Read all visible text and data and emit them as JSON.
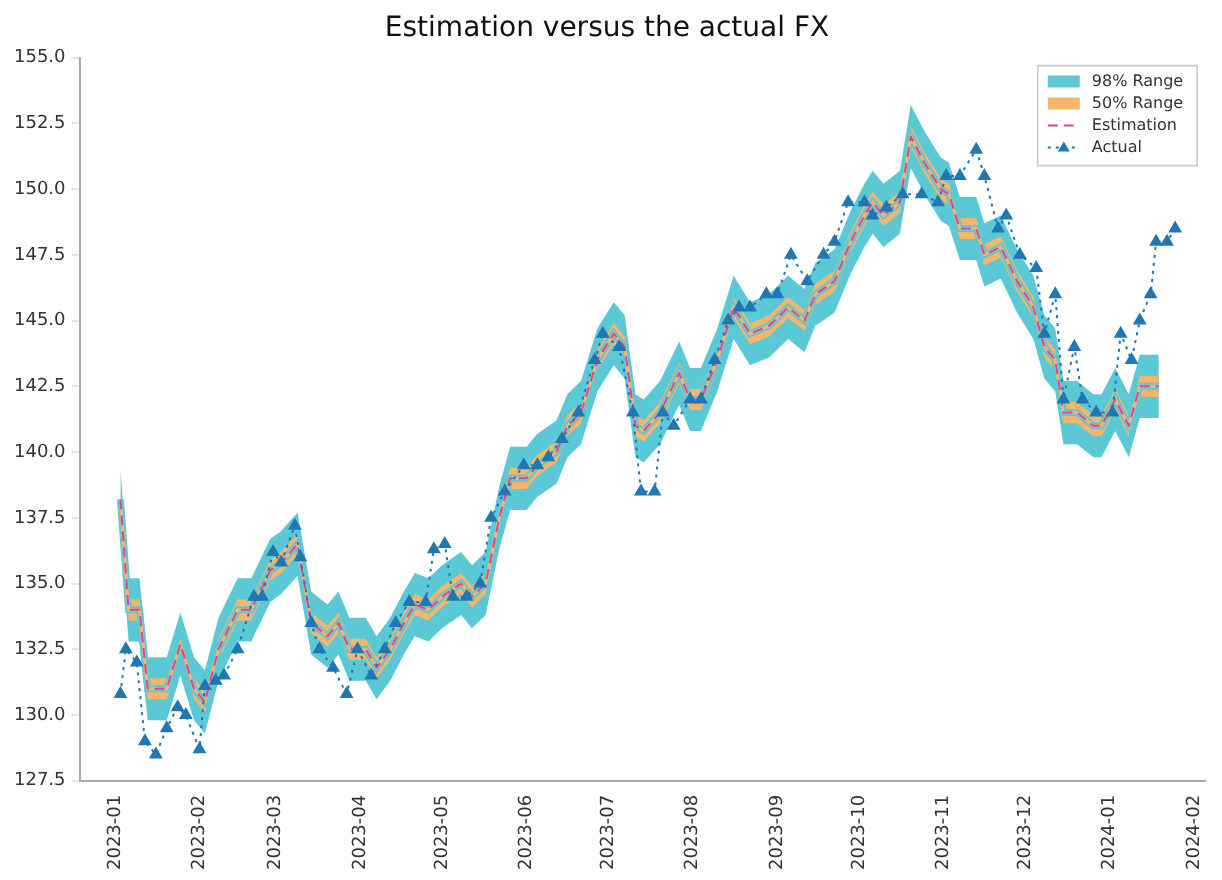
{
  "chart_data": {
    "type": "line",
    "title": "Estimation versus the actual FX",
    "x": [
      "2023-01-03",
      "2023-01-06",
      "2023-01-10",
      "2023-01-13",
      "2023-01-20",
      "2023-01-25",
      "2023-01-30",
      "2023-02-03",
      "2023-02-08",
      "2023-02-15",
      "2023-02-20",
      "2023-02-27",
      "2023-03-03",
      "2023-03-09",
      "2023-03-14",
      "2023-03-20",
      "2023-03-24",
      "2023-03-28",
      "2023-04-03",
      "2023-04-07",
      "2023-04-12",
      "2023-04-17",
      "2023-04-21",
      "2023-04-26",
      "2023-05-01",
      "2023-05-08",
      "2023-05-12",
      "2023-05-17",
      "2023-05-22",
      "2023-05-26",
      "2023-06-01",
      "2023-06-05",
      "2023-06-12",
      "2023-06-16",
      "2023-06-21",
      "2023-06-27",
      "2023-07-03",
      "2023-07-07",
      "2023-07-11",
      "2023-07-14",
      "2023-07-20",
      "2023-07-27",
      "2023-07-31",
      "2023-08-04",
      "2023-08-10",
      "2023-08-16",
      "2023-08-22",
      "2023-08-29",
      "2023-09-05",
      "2023-09-11",
      "2023-09-15",
      "2023-09-22",
      "2023-09-28",
      "2023-10-03",
      "2023-10-06",
      "2023-10-10",
      "2023-10-16",
      "2023-10-20",
      "2023-10-25",
      "2023-10-31",
      "2023-11-03",
      "2023-11-07",
      "2023-11-13",
      "2023-11-16",
      "2023-11-22",
      "2023-11-28",
      "2023-12-04",
      "2023-12-08",
      "2023-12-12",
      "2023-12-15",
      "2023-12-20",
      "2023-12-26",
      "2023-12-29",
      "2024-01-03",
      "2024-01-08",
      "2024-01-12",
      "2024-01-16",
      "2024-01-19"
    ],
    "series": [
      {
        "name": "98% Range",
        "type": "line",
        "color": "#5bc8d6",
        "marker": "none",
        "values": [
          138.2,
          134,
          134,
          131,
          131,
          132.7,
          131,
          130.5,
          132.5,
          134,
          134,
          135.5,
          135.8,
          136.5,
          133.5,
          133,
          133.5,
          132.5,
          132.5,
          131.8,
          132.5,
          133.5,
          134.2,
          134,
          134.5,
          135,
          134.5,
          135,
          137.5,
          139,
          139,
          139.5,
          140,
          141,
          141.5,
          143.5,
          144.5,
          144,
          141,
          140.8,
          141.5,
          143,
          142,
          142,
          143.5,
          145.5,
          144.5,
          144.8,
          145.5,
          145,
          146,
          146.5,
          148,
          149,
          149.5,
          149,
          149.5,
          152,
          151,
          150,
          149.8,
          148.5,
          148.5,
          147.5,
          147.8,
          146.5,
          145.5,
          144,
          143.5,
          141.5,
          141.5,
          141,
          141,
          142,
          141,
          142.5,
          142.5,
          142.5
        ],
        "lower": [
          137.0,
          132.8,
          132.8,
          129.8,
          129.8,
          131.5,
          129.8,
          129.3,
          131.3,
          132.8,
          132.8,
          134.3,
          134.6,
          135.3,
          132.3,
          131.8,
          132.3,
          131.3,
          131.3,
          130.6,
          131.3,
          132.3,
          133.0,
          132.8,
          133.3,
          133.8,
          133.3,
          133.8,
          136.3,
          137.8,
          137.8,
          138.3,
          138.8,
          139.8,
          140.3,
          142.3,
          143.3,
          142.8,
          139.8,
          139.6,
          140.3,
          141.8,
          140.8,
          140.8,
          142.3,
          144.3,
          143.3,
          143.6,
          144.3,
          143.8,
          144.8,
          145.3,
          146.8,
          147.8,
          148.3,
          147.8,
          148.3,
          150.8,
          149.8,
          148.8,
          148.6,
          147.3,
          147.3,
          146.3,
          146.6,
          145.3,
          144.3,
          142.8,
          142.3,
          140.3,
          140.3,
          139.8,
          139.8,
          140.8,
          139.8,
          141.3,
          141.3,
          141.3
        ],
        "upper": [
          139.4,
          135.2,
          135.2,
          132.2,
          132.2,
          133.9,
          132.2,
          131.7,
          133.7,
          135.2,
          135.2,
          136.7,
          137.0,
          137.7,
          134.7,
          134.2,
          134.7,
          133.7,
          133.7,
          133.0,
          133.7,
          134.7,
          135.4,
          135.2,
          135.7,
          136.2,
          135.7,
          136.2,
          138.7,
          140.2,
          140.2,
          140.7,
          141.2,
          142.2,
          142.7,
          144.7,
          145.7,
          145.2,
          142.2,
          142.0,
          142.7,
          144.2,
          143.2,
          143.2,
          144.7,
          146.7,
          145.7,
          146.0,
          146.7,
          146.2,
          147.2,
          147.7,
          149.2,
          150.2,
          150.7,
          150.2,
          150.7,
          153.2,
          152.2,
          151.2,
          151.0,
          149.7,
          149.7,
          148.7,
          149.0,
          147.7,
          146.7,
          145.2,
          144.7,
          142.7,
          142.7,
          142.2,
          142.2,
          143.2,
          142.2,
          143.7,
          143.7,
          143.7
        ]
      },
      {
        "name": "50% Range",
        "type": "line",
        "color": "#f5b56b",
        "marker": "none",
        "values": [
          138.2,
          134,
          134,
          131,
          131,
          132.7,
          131,
          130.5,
          132.5,
          134,
          134,
          135.5,
          135.8,
          136.5,
          133.5,
          133,
          133.5,
          132.5,
          132.5,
          131.8,
          132.5,
          133.5,
          134.2,
          134,
          134.5,
          135,
          134.5,
          135,
          137.5,
          139,
          139,
          139.5,
          140,
          141,
          141.5,
          143.5,
          144.5,
          144,
          141,
          140.8,
          141.5,
          143,
          142,
          142,
          143.5,
          145.5,
          144.5,
          144.8,
          145.5,
          145,
          146,
          146.5,
          148,
          149,
          149.5,
          149,
          149.5,
          152,
          151,
          150,
          149.8,
          148.5,
          148.5,
          147.5,
          147.8,
          146.5,
          145.5,
          144,
          143.5,
          141.5,
          141.5,
          141,
          141,
          142,
          141,
          142.5,
          142.5,
          142.5
        ],
        "lower": [
          137.8,
          133.6,
          133.6,
          130.6,
          130.6,
          132.3,
          130.6,
          130.1,
          132.1,
          133.6,
          133.6,
          135.1,
          135.4,
          136.1,
          133.1,
          132.6,
          133.1,
          132.1,
          132.1,
          131.4,
          132.1,
          133.1,
          133.8,
          133.6,
          134.1,
          134.6,
          134.1,
          134.6,
          137.1,
          138.6,
          138.6,
          139.1,
          139.6,
          140.6,
          141.1,
          143.1,
          144.1,
          143.6,
          140.6,
          140.4,
          141.1,
          142.6,
          141.6,
          141.6,
          143.1,
          145.1,
          144.1,
          144.4,
          145.1,
          144.6,
          145.6,
          146.1,
          147.6,
          148.6,
          149.1,
          148.6,
          149.1,
          151.6,
          150.6,
          149.6,
          149.4,
          148.1,
          148.1,
          147.1,
          147.4,
          146.1,
          145.1,
          143.6,
          143.1,
          141.1,
          141.1,
          140.6,
          140.6,
          141.6,
          140.6,
          142.1,
          142.1,
          142.1
        ],
        "upper": [
          138.6,
          134.4,
          134.4,
          131.4,
          131.4,
          133.1,
          131.4,
          130.9,
          132.9,
          134.4,
          134.4,
          135.9,
          136.2,
          136.9,
          133.9,
          133.4,
          133.9,
          132.9,
          132.9,
          132.2,
          132.9,
          133.9,
          134.6,
          134.4,
          134.9,
          135.4,
          134.9,
          135.4,
          137.9,
          139.4,
          139.4,
          139.9,
          140.4,
          141.4,
          141.9,
          143.9,
          144.9,
          144.4,
          141.4,
          141.2,
          141.9,
          143.4,
          142.4,
          142.4,
          143.9,
          145.9,
          144.9,
          145.2,
          145.9,
          145.4,
          146.4,
          146.9,
          148.4,
          149.4,
          149.9,
          149.4,
          149.9,
          152.4,
          151.4,
          150.4,
          150.2,
          148.9,
          148.9,
          147.9,
          148.2,
          146.9,
          145.9,
          144.4,
          143.9,
          141.9,
          141.9,
          141.4,
          141.4,
          142.4,
          141.4,
          142.9,
          142.9,
          142.9
        ]
      },
      {
        "name": "Estimation",
        "type": "line",
        "color": "#d6479b",
        "line_style": "dashed",
        "marker": "none",
        "values": [
          138.2,
          134,
          134,
          131,
          131,
          132.7,
          131,
          130.5,
          132.5,
          134,
          134,
          135.5,
          135.8,
          136.5,
          133.5,
          133,
          133.5,
          132.5,
          132.5,
          131.8,
          132.5,
          133.5,
          134.2,
          134,
          134.5,
          135,
          134.5,
          135,
          137.5,
          139,
          139,
          139.5,
          140,
          141,
          141.5,
          143.5,
          144.5,
          144,
          141,
          140.8,
          141.5,
          143,
          142,
          142,
          143.5,
          145.5,
          144.5,
          144.8,
          145.5,
          145,
          146,
          146.5,
          148,
          149,
          149.5,
          149,
          149.5,
          152,
          151,
          150,
          149.8,
          148.5,
          148.5,
          147.5,
          147.8,
          146.5,
          145.5,
          144,
          143.5,
          141.5,
          141.5,
          141,
          141,
          142,
          141,
          142.5,
          142.5,
          142.5
        ]
      },
      {
        "name": "Actual",
        "type": "line",
        "color": "#1f77b4",
        "line_style": "dotted",
        "marker": "triangle",
        "x": [
          "2023-01-03",
          "2023-01-05",
          "2023-01-09",
          "2023-01-12",
          "2023-01-16",
          "2023-01-20",
          "2023-01-24",
          "2023-01-27",
          "2023-02-01",
          "2023-02-03",
          "2023-02-07",
          "2023-02-10",
          "2023-02-15",
          "2023-02-21",
          "2023-02-24",
          "2023-02-28",
          "2023-03-03",
          "2023-03-08",
          "2023-03-10",
          "2023-03-14",
          "2023-03-17",
          "2023-03-22",
          "2023-03-27",
          "2023-03-31",
          "2023-04-05",
          "2023-04-10",
          "2023-04-14",
          "2023-04-19",
          "2023-04-25",
          "2023-04-28",
          "2023-05-02",
          "2023-05-05",
          "2023-05-10",
          "2023-05-15",
          "2023-05-19",
          "2023-05-24",
          "2023-05-31",
          "2023-06-05",
          "2023-06-09",
          "2023-06-14",
          "2023-06-20",
          "2023-06-26",
          "2023-06-29",
          "2023-07-05",
          "2023-07-10",
          "2023-07-13",
          "2023-07-18",
          "2023-07-21",
          "2023-07-25",
          "2023-07-31",
          "2023-08-04",
          "2023-08-09",
          "2023-08-14",
          "2023-08-18",
          "2023-08-22",
          "2023-08-28",
          "2023-09-01",
          "2023-09-06",
          "2023-09-12",
          "2023-09-18",
          "2023-09-22",
          "2023-09-27",
          "2023-10-03",
          "2023-10-06",
          "2023-10-11",
          "2023-10-17",
          "2023-10-24",
          "2023-10-30",
          "2023-11-02",
          "2023-11-07",
          "2023-11-13",
          "2023-11-16",
          "2023-11-21",
          "2023-11-24",
          "2023-11-29",
          "2023-12-05",
          "2023-12-08",
          "2023-12-12",
          "2023-12-15",
          "2023-12-19",
          "2023-12-22",
          "2023-12-27",
          "2024-01-02",
          "2024-01-05",
          "2024-01-09",
          "2024-01-12",
          "2024-01-16",
          "2024-01-18",
          "2024-01-22",
          "2024-01-25"
        ],
        "values": [
          130.8,
          132.5,
          132,
          129,
          128.5,
          129.5,
          130.3,
          130,
          128.7,
          131.1,
          131.3,
          131.5,
          132.5,
          134.5,
          134.5,
          136.2,
          135.8,
          137.2,
          136,
          133.5,
          132.5,
          131.8,
          130.8,
          132.5,
          131.5,
          132.5,
          133.5,
          134.3,
          134.3,
          136.3,
          136.5,
          134.5,
          134.5,
          135,
          137.5,
          138.5,
          139.5,
          139.5,
          139.8,
          140.5,
          141.5,
          143.5,
          144.5,
          144,
          141.5,
          138.5,
          138.5,
          141.5,
          141,
          142,
          142,
          143.5,
          145,
          145.5,
          145.5,
          146,
          146,
          147.5,
          146.5,
          147.5,
          148,
          149.5,
          149.5,
          149,
          149.3,
          149.8,
          149.8,
          149.5,
          150.5,
          150.5,
          151.5,
          150.5,
          148.5,
          149,
          147.5,
          147,
          144.5,
          146,
          142,
          144,
          142,
          141.5,
          141.5,
          144.5,
          143.5,
          145,
          146,
          148,
          148,
          148.5
        ]
      }
    ],
    "xlim": [
      "2022-12-19",
      "2024-02-05"
    ],
    "xticks": [
      "2023-01",
      "2023-02",
      "2023-03",
      "2023-04",
      "2023-05",
      "2023-06",
      "2023-07",
      "2023-08",
      "2023-09",
      "2023-10",
      "2023-11",
      "2023-12",
      "2024-01",
      "2024-02"
    ],
    "ylim": [
      127.5,
      155
    ],
    "yticks": [
      127.5,
      {
        "value": 130,
        "label": "130.0"
      },
      132.5,
      {
        "value": 135,
        "label": "135.0"
      },
      137.5,
      {
        "value": 140,
        "label": "140.0"
      },
      142.5,
      {
        "value": 145,
        "label": "145.0"
      },
      147.5,
      {
        "value": 150,
        "label": "150.0"
      },
      152.5,
      {
        "value": 155,
        "label": "155.0"
      }
    ],
    "grid": false,
    "legend": "top right"
  }
}
